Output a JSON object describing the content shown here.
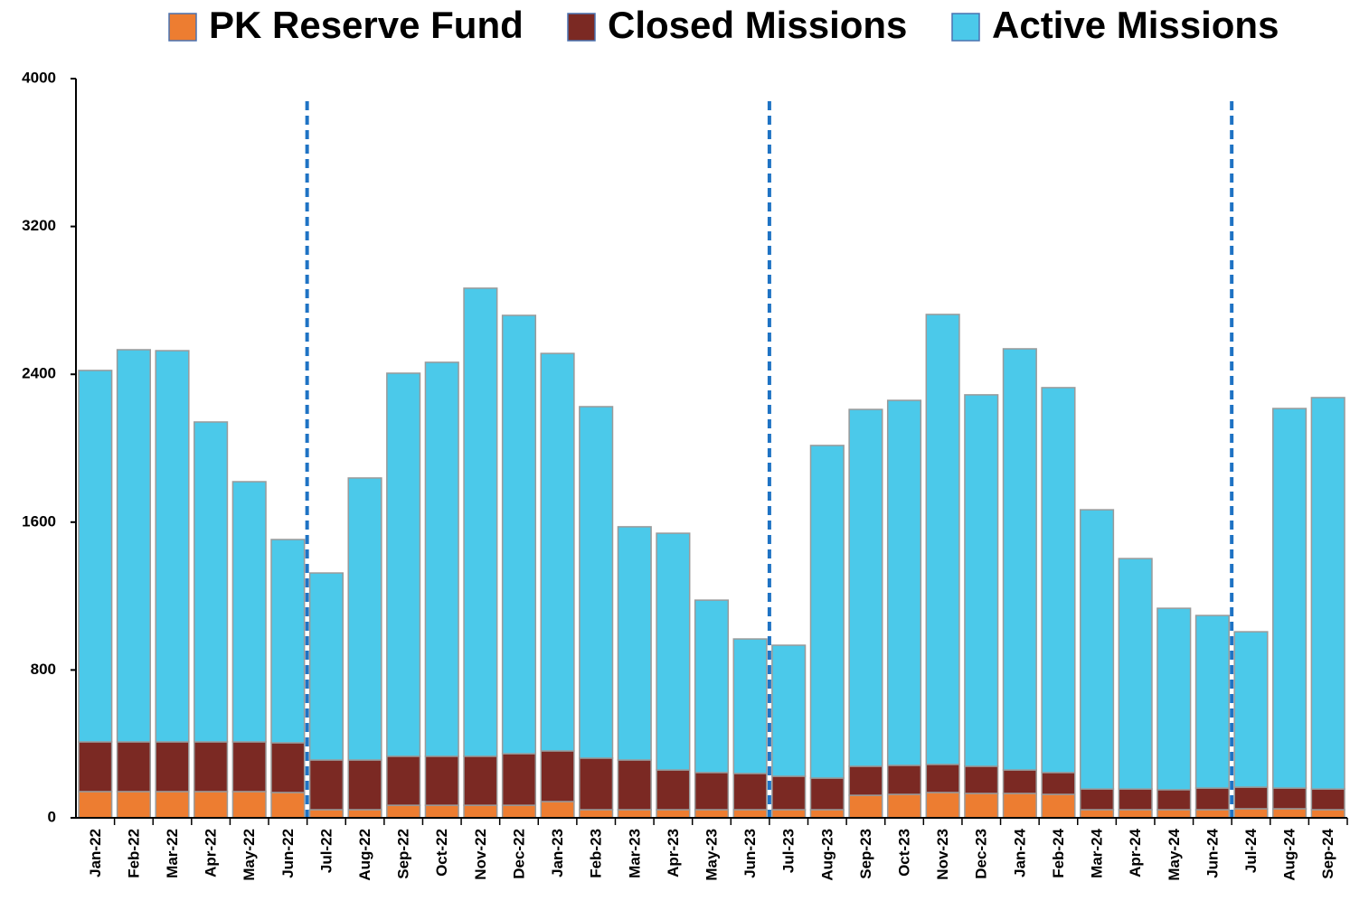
{
  "chart_data": {
    "type": "stacked_bar",
    "categories": [
      "Jan-22",
      "Feb-22",
      "Mar-22",
      "Apr-22",
      "May-22",
      "Jun-22",
      "Jul-22",
      "Aug-22",
      "Sep-22",
      "Oct-22",
      "Nov-22",
      "Dec-22",
      "Jan-23",
      "Feb-23",
      "Mar-23",
      "Apr-23",
      "May-23",
      "Jun-23",
      "Jul-23",
      "Aug-23",
      "Sep-23",
      "Oct-23",
      "Nov-23",
      "Dec-23",
      "Jan-24",
      "Feb-24",
      "Mar-24",
      "Apr-24",
      "May-24",
      "Jun-24",
      "Jul-24",
      "Aug-24",
      "Sep-24"
    ],
    "series": [
      {
        "name": "PK Reserve Fund",
        "color": "#ED7D31",
        "values": [
          142,
          142,
          142,
          142,
          142,
          137,
          44,
          44,
          68,
          68,
          68,
          68,
          88,
          44,
          44,
          44,
          44,
          44,
          44,
          44,
          122,
          127,
          137,
          132,
          132,
          127,
          44,
          44,
          44,
          44,
          49,
          49,
          44
        ]
      },
      {
        "name": "Closed Missions",
        "color": "#7B2923",
        "values": [
          269,
          269,
          269,
          269,
          269,
          269,
          269,
          269,
          265,
          265,
          265,
          279,
          274,
          279,
          269,
          215,
          201,
          196,
          181,
          171,
          157,
          157,
          152,
          147,
          127,
          118,
          112,
          112,
          108,
          117,
          117,
          112,
          112
        ]
      },
      {
        "name": "Active Missions",
        "color": "#4BC9EA",
        "values": [
          2010,
          2122,
          2117,
          1731,
          1408,
          1100,
          1012,
          1526,
          2073,
          2132,
          2533,
          2372,
          2151,
          1902,
          1262,
          1281,
          933,
          728,
          709,
          1800,
          1931,
          1975,
          2435,
          2010,
          2279,
          2083,
          1511,
          1247,
          982,
          934,
          841,
          2054,
          2118
        ]
      }
    ],
    "ylim": [
      0,
      4000
    ],
    "yticks": [
      0,
      800,
      1600,
      2400,
      3200,
      4000
    ]
  }
}
